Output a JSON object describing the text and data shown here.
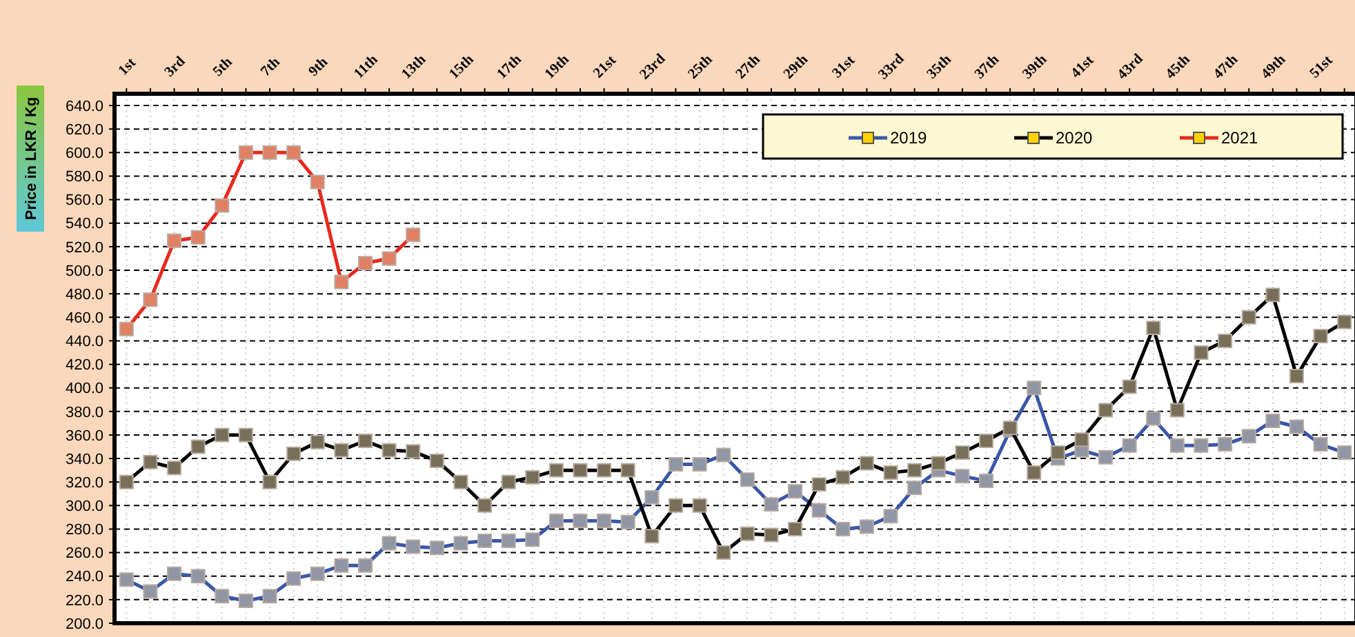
{
  "chart_data": {
    "type": "line",
    "ylabel": "Price in LKR / Kg",
    "categories": [
      "1st",
      null,
      "3rd",
      null,
      "5th",
      null,
      "7th",
      null,
      "9th",
      null,
      "11th",
      null,
      "13th",
      null,
      "15th",
      null,
      "17th",
      null,
      "19th",
      null,
      "21st",
      null,
      "23rd",
      null,
      "25th",
      null,
      "27th",
      null,
      "29th",
      null,
      "31st",
      null,
      "33rd",
      null,
      "35th",
      null,
      "37th",
      null,
      "39th",
      null,
      "41st",
      null,
      "43rd",
      null,
      "45th",
      null,
      "47th",
      null,
      "49th",
      null,
      "51st",
      null
    ],
    "series": [
      {
        "name": "2019",
        "color": "#3a57a8",
        "values": [
          237,
          227,
          242,
          240,
          223,
          219,
          223,
          238,
          242,
          249,
          249,
          268,
          265,
          264,
          268,
          270,
          270,
          271,
          287,
          287,
          287,
          286,
          307,
          335,
          335,
          343,
          322,
          301,
          312,
          296,
          280,
          282,
          291,
          315,
          330,
          325,
          321,
          364,
          400,
          340,
          347,
          341,
          351,
          374,
          351,
          351,
          352,
          359,
          372,
          367,
          352,
          345
        ]
      },
      {
        "name": "2020",
        "color": "#000000",
        "values": [
          320,
          337,
          332,
          350,
          360,
          360,
          320,
          344,
          354,
          347,
          355,
          347,
          346,
          338,
          320,
          300,
          320,
          324,
          330,
          330,
          330,
          330,
          274,
          300,
          300,
          260,
          276,
          275,
          280,
          318,
          324,
          336,
          328,
          330,
          336,
          345,
          355,
          366,
          328,
          345,
          356,
          381,
          401,
          451,
          381,
          430,
          440,
          460,
          479,
          410,
          444,
          456
        ]
      },
      {
        "name": "2021",
        "color": "#e8291c",
        "values": [
          450,
          475,
          525,
          528,
          555,
          600,
          600,
          600,
          575,
          490,
          506,
          510,
          530,
          null,
          null,
          null,
          null,
          null,
          null,
          null,
          null,
          null,
          null,
          null,
          null,
          null,
          null,
          null,
          null,
          null,
          null,
          null,
          null,
          null,
          null,
          null,
          null,
          null,
          null,
          null,
          null,
          null,
          null,
          null,
          null,
          null,
          null,
          null,
          null,
          null,
          null,
          null
        ]
      }
    ],
    "ylim": [
      200,
      650
    ],
    "yticks": [
      {
        "value": 200,
        "label": "200.0"
      },
      {
        "value": 220,
        "label": "220.0"
      },
      {
        "value": 240,
        "label": "240.0"
      },
      {
        "value": 260,
        "label": "260.0"
      },
      {
        "value": 280,
        "label": "280.0"
      },
      {
        "value": 300,
        "label": "300.0"
      },
      {
        "value": 320,
        "label": "320.0"
      },
      {
        "value": 340,
        "label": "340.0"
      },
      {
        "value": 360,
        "label": "360.0"
      },
      {
        "value": 380,
        "label": "380.0"
      },
      {
        "value": 400,
        "label": "400.0"
      },
      {
        "value": 420,
        "label": "420.0"
      },
      {
        "value": 440,
        "label": "440.0"
      },
      {
        "value": 460,
        "label": "460.0"
      },
      {
        "value": 480,
        "label": "480.0"
      },
      {
        "value": 500,
        "label": "500.0"
      },
      {
        "value": 520,
        "label": "520.0"
      },
      {
        "value": 540,
        "label": "540.0"
      },
      {
        "value": 560,
        "label": "560.0"
      },
      {
        "value": 580,
        "label": "580.0"
      },
      {
        "value": 600,
        "label": "600.0"
      },
      {
        "value": 620,
        "label": "620.0"
      },
      {
        "value": 640,
        "label": "640.0"
      }
    ],
    "grid": true,
    "legend": "top right",
    "marker": "square",
    "line_style": "solid"
  }
}
